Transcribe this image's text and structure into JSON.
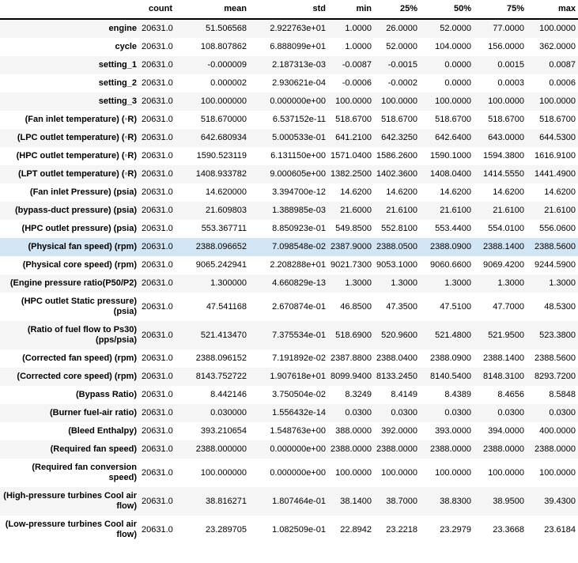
{
  "chart_data": {
    "type": "table",
    "index_header": "",
    "columns": [
      "count",
      "mean",
      "std",
      "min",
      "25%",
      "50%",
      "75%",
      "max"
    ],
    "highlighted_row": "(Physical fan speed) (rpm)",
    "rows": [
      {
        "label": "engine",
        "values": [
          "20631.0",
          "51.506568",
          "2.922763e+01",
          "1.0000",
          "26.0000",
          "52.0000",
          "77.0000",
          "100.0000"
        ]
      },
      {
        "label": "cycle",
        "values": [
          "20631.0",
          "108.807862",
          "6.888099e+01",
          "1.0000",
          "52.0000",
          "104.0000",
          "156.0000",
          "362.0000"
        ]
      },
      {
        "label": "setting_1",
        "values": [
          "20631.0",
          "-0.000009",
          "2.187313e-03",
          "-0.0087",
          "-0.0015",
          "0.0000",
          "0.0015",
          "0.0087"
        ]
      },
      {
        "label": "setting_2",
        "values": [
          "20631.0",
          "0.000002",
          "2.930621e-04",
          "-0.0006",
          "-0.0002",
          "0.0000",
          "0.0003",
          "0.0006"
        ]
      },
      {
        "label": "setting_3",
        "values": [
          "20631.0",
          "100.000000",
          "0.000000e+00",
          "100.0000",
          "100.0000",
          "100.0000",
          "100.0000",
          "100.0000"
        ]
      },
      {
        "label": "(Fan inlet temperature) (◦R)",
        "values": [
          "20631.0",
          "518.670000",
          "6.537152e-11",
          "518.6700",
          "518.6700",
          "518.6700",
          "518.6700",
          "518.6700"
        ]
      },
      {
        "label": "(LPC outlet temperature) (◦R)",
        "values": [
          "20631.0",
          "642.680934",
          "5.000533e-01",
          "641.2100",
          "642.3250",
          "642.6400",
          "643.0000",
          "644.5300"
        ]
      },
      {
        "label": "(HPC outlet temperature) (◦R)",
        "values": [
          "20631.0",
          "1590.523119",
          "6.131150e+00",
          "1571.0400",
          "1586.2600",
          "1590.1000",
          "1594.3800",
          "1616.9100"
        ]
      },
      {
        "label": "(LPT outlet temperature) (◦R)",
        "values": [
          "20631.0",
          "1408.933782",
          "9.000605e+00",
          "1382.2500",
          "1402.3600",
          "1408.0400",
          "1414.5550",
          "1441.4900"
        ]
      },
      {
        "label": "(Fan inlet Pressure) (psia)",
        "values": [
          "20631.0",
          "14.620000",
          "3.394700e-12",
          "14.6200",
          "14.6200",
          "14.6200",
          "14.6200",
          "14.6200"
        ]
      },
      {
        "label": "(bypass-duct pressure) (psia)",
        "values": [
          "20631.0",
          "21.609803",
          "1.388985e-03",
          "21.6000",
          "21.6100",
          "21.6100",
          "21.6100",
          "21.6100"
        ]
      },
      {
        "label": "(HPC outlet pressure) (psia)",
        "values": [
          "20631.0",
          "553.367711",
          "8.850923e-01",
          "549.8500",
          "552.8100",
          "553.4400",
          "554.0100",
          "556.0600"
        ]
      },
      {
        "label": "(Physical fan speed) (rpm)",
        "values": [
          "20631.0",
          "2388.096652",
          "7.098548e-02",
          "2387.9000",
          "2388.0500",
          "2388.0900",
          "2388.1400",
          "2388.5600"
        ]
      },
      {
        "label": "(Physical core speed) (rpm)",
        "values": [
          "20631.0",
          "9065.242941",
          "2.208288e+01",
          "9021.7300",
          "9053.1000",
          "9060.6600",
          "9069.4200",
          "9244.5900"
        ]
      },
      {
        "label": "(Engine pressure ratio(P50/P2)",
        "values": [
          "20631.0",
          "1.300000",
          "4.660829e-13",
          "1.3000",
          "1.3000",
          "1.3000",
          "1.3000",
          "1.3000"
        ]
      },
      {
        "label": "(HPC outlet Static pressure) (psia)",
        "values": [
          "20631.0",
          "47.541168",
          "2.670874e-01",
          "46.8500",
          "47.3500",
          "47.5100",
          "47.7000",
          "48.5300"
        ]
      },
      {
        "label": "(Ratio of fuel flow to Ps30) (pps/psia)",
        "values": [
          "20631.0",
          "521.413470",
          "7.375534e-01",
          "518.6900",
          "520.9600",
          "521.4800",
          "521.9500",
          "523.3800"
        ]
      },
      {
        "label": "(Corrected fan speed) (rpm)",
        "values": [
          "20631.0",
          "2388.096152",
          "7.191892e-02",
          "2387.8800",
          "2388.0400",
          "2388.0900",
          "2388.1400",
          "2388.5600"
        ]
      },
      {
        "label": "(Corrected core speed) (rpm)",
        "values": [
          "20631.0",
          "8143.752722",
          "1.907618e+01",
          "8099.9400",
          "8133.2450",
          "8140.5400",
          "8148.3100",
          "8293.7200"
        ]
      },
      {
        "label": "(Bypass Ratio)",
        "values": [
          "20631.0",
          "8.442146",
          "3.750504e-02",
          "8.3249",
          "8.4149",
          "8.4389",
          "8.4656",
          "8.5848"
        ]
      },
      {
        "label": "(Burner fuel-air ratio)",
        "values": [
          "20631.0",
          "0.030000",
          "1.556432e-14",
          "0.0300",
          "0.0300",
          "0.0300",
          "0.0300",
          "0.0300"
        ]
      },
      {
        "label": "(Bleed Enthalpy)",
        "values": [
          "20631.0",
          "393.210654",
          "1.548763e+00",
          "388.0000",
          "392.0000",
          "393.0000",
          "394.0000",
          "400.0000"
        ]
      },
      {
        "label": "(Required fan speed)",
        "values": [
          "20631.0",
          "2388.000000",
          "0.000000e+00",
          "2388.0000",
          "2388.0000",
          "2388.0000",
          "2388.0000",
          "2388.0000"
        ]
      },
      {
        "label": "(Required fan conversion speed)",
        "values": [
          "20631.0",
          "100.000000",
          "0.000000e+00",
          "100.0000",
          "100.0000",
          "100.0000",
          "100.0000",
          "100.0000"
        ]
      },
      {
        "label": "(High-pressure turbines Cool air flow)",
        "values": [
          "20631.0",
          "38.816271",
          "1.807464e-01",
          "38.1400",
          "38.7000",
          "38.8300",
          "38.9500",
          "39.4300"
        ]
      },
      {
        "label": "(Low-pressure turbines Cool air flow)",
        "values": [
          "20631.0",
          "23.289705",
          "1.082509e-01",
          "22.8942",
          "23.2218",
          "23.2979",
          "23.3668",
          "23.6184"
        ]
      }
    ]
  },
  "colors": {
    "stripe": "#f5f5f5",
    "highlight": "#d1e5f5",
    "header_border": "#000000"
  }
}
